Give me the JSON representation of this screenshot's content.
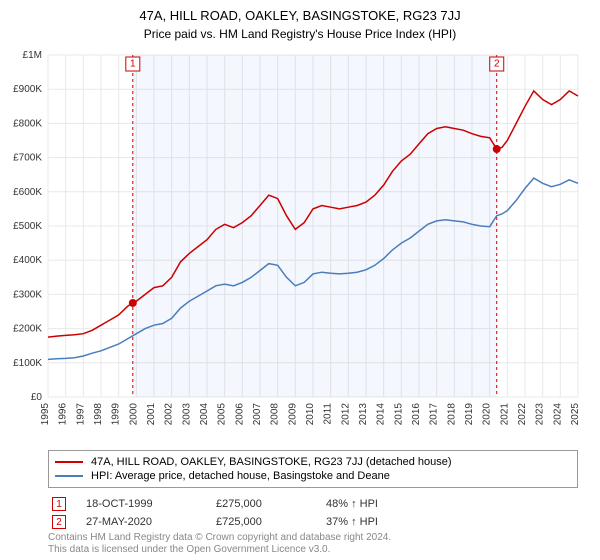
{
  "title": "47A, HILL ROAD, OAKLEY, BASINGSTOKE, RG23 7JJ",
  "subtitle": "Price paid vs. HM Land Registry's House Price Index (HPI)",
  "chart": {
    "type": "line",
    "background_color": "#ffffff",
    "grid_color": "#e8e8e8",
    "x_axis": {
      "min": 1995,
      "max": 2025,
      "ticks": [
        1995,
        1996,
        1997,
        1998,
        1999,
        2000,
        2001,
        2002,
        2003,
        2004,
        2005,
        2006,
        2007,
        2008,
        2009,
        2010,
        2011,
        2012,
        2013,
        2014,
        2015,
        2016,
        2017,
        2018,
        2019,
        2020,
        2021,
        2022,
        2023,
        2024,
        2025
      ],
      "label_fontsize": 10,
      "label_rotation": -90
    },
    "y_axis": {
      "min": 0,
      "max": 1000000,
      "ticks": [
        0,
        100000,
        200000,
        300000,
        400000,
        500000,
        600000,
        700000,
        800000,
        900000,
        1000000
      ],
      "tick_labels": [
        "£0",
        "£100K",
        "£200K",
        "£300K",
        "£400K",
        "£500K",
        "£600K",
        "£700K",
        "£800K",
        "£900K",
        "£1M"
      ],
      "label_fontsize": 10
    },
    "shaded_regions": [
      {
        "from": 1999.8,
        "to": 2020.4,
        "color": "#6d9eeb"
      }
    ],
    "series": [
      {
        "name": "property",
        "label": "47A, HILL ROAD, OAKLEY, BASINGSTOKE, RG23 7JJ (detached house)",
        "color": "#cc0000",
        "line_width": 1.5,
        "data": [
          [
            1995.0,
            175000
          ],
          [
            1995.5,
            178000
          ],
          [
            1996.0,
            180000
          ],
          [
            1996.5,
            182000
          ],
          [
            1997.0,
            185000
          ],
          [
            1997.5,
            195000
          ],
          [
            1998.0,
            210000
          ],
          [
            1998.5,
            225000
          ],
          [
            1999.0,
            240000
          ],
          [
            1999.5,
            265000
          ],
          [
            1999.8,
            275000
          ],
          [
            2000.0,
            280000
          ],
          [
            2000.5,
            300000
          ],
          [
            2001.0,
            320000
          ],
          [
            2001.5,
            325000
          ],
          [
            2002.0,
            350000
          ],
          [
            2002.5,
            395000
          ],
          [
            2003.0,
            420000
          ],
          [
            2003.5,
            440000
          ],
          [
            2004.0,
            460000
          ],
          [
            2004.5,
            490000
          ],
          [
            2005.0,
            505000
          ],
          [
            2005.5,
            495000
          ],
          [
            2006.0,
            510000
          ],
          [
            2006.5,
            530000
          ],
          [
            2007.0,
            560000
          ],
          [
            2007.5,
            590000
          ],
          [
            2008.0,
            580000
          ],
          [
            2008.5,
            530000
          ],
          [
            2009.0,
            490000
          ],
          [
            2009.5,
            510000
          ],
          [
            2010.0,
            550000
          ],
          [
            2010.5,
            560000
          ],
          [
            2011.0,
            555000
          ],
          [
            2011.5,
            550000
          ],
          [
            2012.0,
            555000
          ],
          [
            2012.5,
            560000
          ],
          [
            2013.0,
            570000
          ],
          [
            2013.5,
            590000
          ],
          [
            2014.0,
            620000
          ],
          [
            2014.5,
            660000
          ],
          [
            2015.0,
            690000
          ],
          [
            2015.5,
            710000
          ],
          [
            2016.0,
            740000
          ],
          [
            2016.5,
            770000
          ],
          [
            2017.0,
            785000
          ],
          [
            2017.5,
            790000
          ],
          [
            2018.0,
            785000
          ],
          [
            2018.5,
            780000
          ],
          [
            2019.0,
            770000
          ],
          [
            2019.5,
            762000
          ],
          [
            2020.0,
            758000
          ],
          [
            2020.4,
            725000
          ],
          [
            2020.7,
            730000
          ],
          [
            2021.0,
            750000
          ],
          [
            2021.5,
            800000
          ],
          [
            2022.0,
            850000
          ],
          [
            2022.5,
            895000
          ],
          [
            2023.0,
            870000
          ],
          [
            2023.5,
            855000
          ],
          [
            2024.0,
            870000
          ],
          [
            2024.5,
            895000
          ],
          [
            2025.0,
            880000
          ]
        ]
      },
      {
        "name": "hpi",
        "label": "HPI: Average price, detached house, Basingstoke and Deane",
        "color": "#4a7ebb",
        "line_width": 1.5,
        "data": [
          [
            1995.0,
            110000
          ],
          [
            1995.5,
            112000
          ],
          [
            1996.0,
            113000
          ],
          [
            1996.5,
            115000
          ],
          [
            1997.0,
            120000
          ],
          [
            1997.5,
            128000
          ],
          [
            1998.0,
            135000
          ],
          [
            1998.5,
            145000
          ],
          [
            1999.0,
            155000
          ],
          [
            1999.5,
            170000
          ],
          [
            2000.0,
            185000
          ],
          [
            2000.5,
            200000
          ],
          [
            2001.0,
            210000
          ],
          [
            2001.5,
            215000
          ],
          [
            2002.0,
            230000
          ],
          [
            2002.5,
            260000
          ],
          [
            2003.0,
            280000
          ],
          [
            2003.5,
            295000
          ],
          [
            2004.0,
            310000
          ],
          [
            2004.5,
            325000
          ],
          [
            2005.0,
            330000
          ],
          [
            2005.5,
            325000
          ],
          [
            2006.0,
            335000
          ],
          [
            2006.5,
            350000
          ],
          [
            2007.0,
            370000
          ],
          [
            2007.5,
            390000
          ],
          [
            2008.0,
            385000
          ],
          [
            2008.5,
            350000
          ],
          [
            2009.0,
            325000
          ],
          [
            2009.5,
            335000
          ],
          [
            2010.0,
            360000
          ],
          [
            2010.5,
            365000
          ],
          [
            2011.0,
            362000
          ],
          [
            2011.5,
            360000
          ],
          [
            2012.0,
            362000
          ],
          [
            2012.5,
            365000
          ],
          [
            2013.0,
            372000
          ],
          [
            2013.5,
            385000
          ],
          [
            2014.0,
            405000
          ],
          [
            2014.5,
            430000
          ],
          [
            2015.0,
            450000
          ],
          [
            2015.5,
            465000
          ],
          [
            2016.0,
            485000
          ],
          [
            2016.5,
            505000
          ],
          [
            2017.0,
            515000
          ],
          [
            2017.5,
            518000
          ],
          [
            2018.0,
            515000
          ],
          [
            2018.5,
            512000
          ],
          [
            2019.0,
            505000
          ],
          [
            2019.5,
            500000
          ],
          [
            2020.0,
            498000
          ],
          [
            2020.4,
            530000
          ],
          [
            2020.7,
            535000
          ],
          [
            2021.0,
            545000
          ],
          [
            2021.5,
            575000
          ],
          [
            2022.0,
            610000
          ],
          [
            2022.5,
            640000
          ],
          [
            2023.0,
            625000
          ],
          [
            2023.5,
            615000
          ],
          [
            2024.0,
            622000
          ],
          [
            2024.5,
            635000
          ],
          [
            2025.0,
            625000
          ]
        ]
      }
    ],
    "event_lines": [
      {
        "x": 1999.8,
        "color": "#cc0000",
        "dash": "3,3"
      },
      {
        "x": 2020.4,
        "color": "#cc0000",
        "dash": "3,3"
      }
    ],
    "event_markers": [
      {
        "num": "1",
        "x": 1999.8,
        "y_top": 980000,
        "dot_x": 1999.8,
        "dot_y": 275000,
        "color": "#cc0000"
      },
      {
        "num": "2",
        "x": 2020.4,
        "y_top": 980000,
        "dot_x": 2020.4,
        "dot_y": 725000,
        "color": "#cc0000"
      }
    ]
  },
  "legend": {
    "border_color": "#999999",
    "items": [
      {
        "color": "#cc0000",
        "label": "47A, HILL ROAD, OAKLEY, BASINGSTOKE, RG23 7JJ (detached house)"
      },
      {
        "color": "#4a7ebb",
        "label": "HPI: Average price, detached house, Basingstoke and Deane"
      }
    ]
  },
  "transactions": [
    {
      "num": "1",
      "color": "#cc0000",
      "date": "18-OCT-1999",
      "price": "£275,000",
      "pct": "48% ↑ HPI"
    },
    {
      "num": "2",
      "color": "#cc0000",
      "date": "27-MAY-2020",
      "price": "£725,000",
      "pct": "37% ↑ HPI"
    }
  ],
  "footer": {
    "line1": "Contains HM Land Registry data © Crown copyright and database right 2024.",
    "line2": "This data is licensed under the Open Government Licence v3.0."
  }
}
